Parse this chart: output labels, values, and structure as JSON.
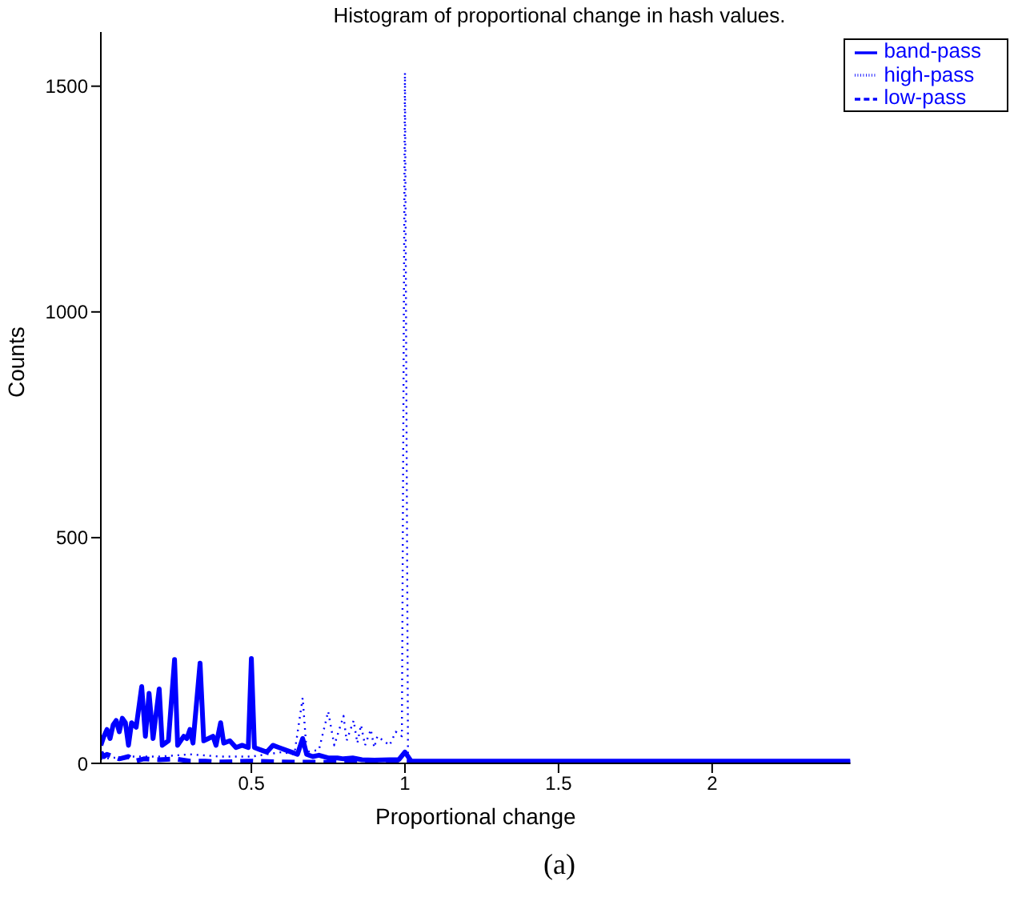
{
  "chart_data": {
    "type": "line",
    "title": "Histogram of proportional change in hash values.",
    "xlabel": "Proportional change",
    "ylabel": "Counts",
    "annotations": [
      "(a)"
    ],
    "xlim": [
      0.01,
      2.45
    ],
    "ylim": [
      0,
      1620
    ],
    "xticks": [
      0.5,
      1,
      1.5,
      2
    ],
    "yticks": [
      0,
      500,
      1000,
      1500
    ],
    "grid": false,
    "legend": "top right",
    "marker": "none",
    "series": [
      {
        "name": "low-pass",
        "color": "#0000ff",
        "line_style": "dashed",
        "x": [
          0.01,
          0.02,
          0.03,
          0.05,
          0.07,
          0.1,
          0.12,
          0.15,
          0.2,
          0.25,
          0.3,
          0.35,
          0.4,
          0.5,
          0.6,
          0.8,
          1.0,
          2.45
        ],
        "values": [
          25,
          15,
          20,
          15,
          10,
          15,
          5,
          10,
          8,
          10,
          5,
          5,
          3,
          5,
          3,
          2,
          3,
          2
        ]
      },
      {
        "name": "band-pass",
        "color": "#0000ff",
        "line_style": "solid",
        "x": [
          0.01,
          0.02,
          0.03,
          0.04,
          0.05,
          0.06,
          0.07,
          0.08,
          0.09,
          0.1,
          0.11,
          0.125,
          0.143,
          0.155,
          0.167,
          0.18,
          0.2,
          0.21,
          0.23,
          0.25,
          0.26,
          0.28,
          0.29,
          0.3,
          0.31,
          0.333,
          0.345,
          0.36,
          0.375,
          0.385,
          0.4,
          0.41,
          0.43,
          0.45,
          0.47,
          0.49,
          0.5,
          0.51,
          0.53,
          0.55,
          0.57,
          0.59,
          0.61,
          0.63,
          0.65,
          0.667,
          0.68,
          0.7,
          0.72,
          0.75,
          0.78,
          0.8,
          0.83,
          0.86,
          0.9,
          0.95,
          0.98,
          1.0,
          1.02,
          1.2,
          1.5,
          2.0,
          2.45
        ],
        "values": [
          40,
          60,
          75,
          55,
          85,
          95,
          70,
          100,
          90,
          40,
          90,
          80,
          170,
          60,
          155,
          55,
          165,
          40,
          50,
          230,
          40,
          60,
          55,
          75,
          45,
          222,
          50,
          55,
          60,
          40,
          90,
          45,
          50,
          35,
          40,
          35,
          232,
          35,
          30,
          25,
          40,
          35,
          30,
          25,
          20,
          55,
          20,
          15,
          18,
          12,
          12,
          10,
          12,
          8,
          7,
          8,
          8,
          25,
          5,
          5,
          5,
          5,
          5
        ]
      },
      {
        "name": "high-pass",
        "color": "#0000ff",
        "line_style": "dotted",
        "x": [
          0.01,
          0.1,
          0.2,
          0.3,
          0.4,
          0.5,
          0.55,
          0.6,
          0.64,
          0.667,
          0.68,
          0.72,
          0.75,
          0.77,
          0.8,
          0.81,
          0.833,
          0.845,
          0.857,
          0.87,
          0.889,
          0.9,
          0.91,
          0.93,
          0.95,
          0.97,
          0.99,
          1.0,
          1.01,
          2.45
        ],
        "values": [
          10,
          15,
          15,
          20,
          15,
          15,
          20,
          25,
          20,
          145,
          25,
          30,
          115,
          40,
          105,
          50,
          95,
          45,
          85,
          40,
          75,
          35,
          60,
          50,
          40,
          70,
          60,
          1530,
          5,
          2
        ]
      }
    ]
  }
}
